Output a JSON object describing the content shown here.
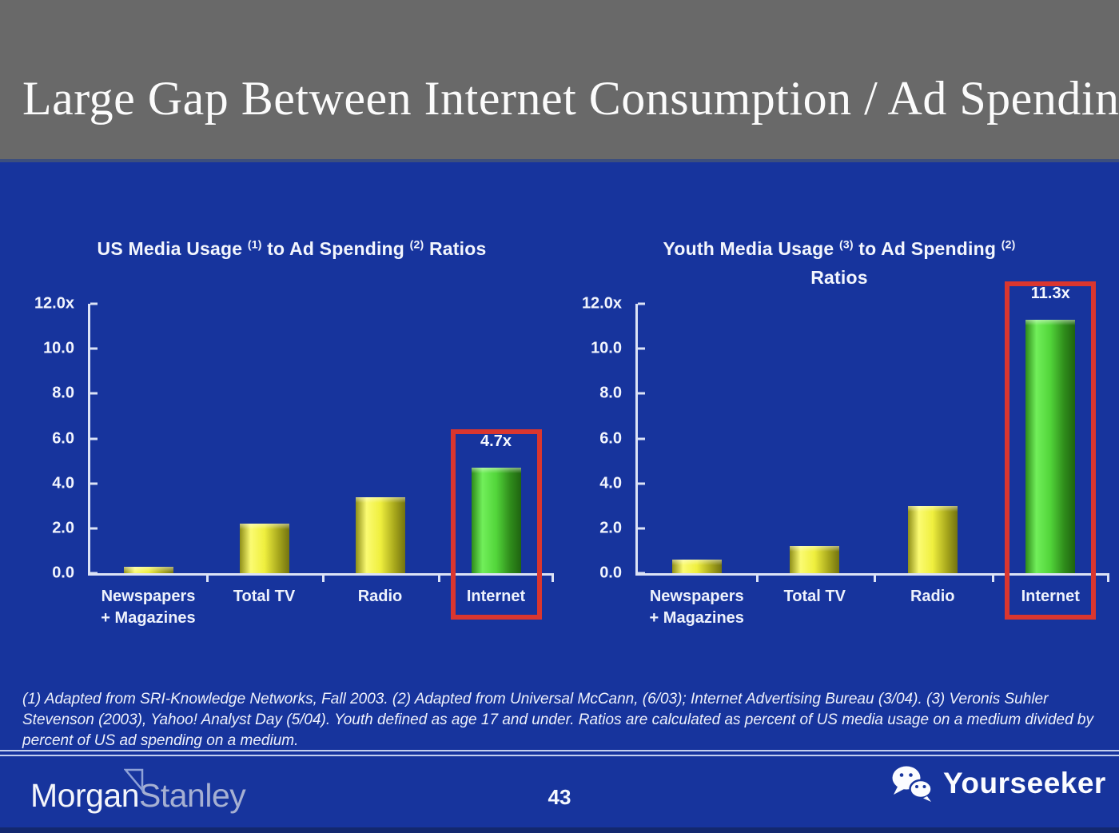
{
  "slide": {
    "title": "Large Gap Between Internet Consumption / Ad Spending",
    "footnote": "(1) Adapted from SRI-Knowledge Networks, Fall 2003.  (2) Adapted from Universal McCann, (6/03); Internet Advertising Bureau (3/04). (3) Veronis Suhler Stevenson (2003), Yahoo! Analyst Day (5/04).  Youth defined as age 17 and under.  Ratios are calculated as percent of US media usage on a medium divided by percent of US ad spending on a medium.",
    "page_number": "43"
  },
  "footer": {
    "brand": {
      "word1": "Morgan",
      "word2": "Stanley"
    },
    "watermark": "Yourseeker"
  },
  "colors": {
    "header_gray": "#696969",
    "background_blue": "#17349d",
    "bar_yellow": "#efef3e",
    "bar_green": "#52d53a",
    "highlight_red": "#da362f",
    "axis_white": "#dce3f6"
  },
  "chart_data": [
    {
      "type": "bar",
      "title": "US Media Usage (1) to Ad Spending (2) Ratios",
      "title_segments": [
        [
          {
            "text": "US Media Usage "
          },
          {
            "text": "(1)",
            "sup": true
          },
          {
            "text": " to Ad Spending "
          },
          {
            "text": "(2)",
            "sup": true
          },
          {
            "text": " Ratios"
          }
        ]
      ],
      "categories": [
        [
          "Newspapers",
          "+ Magazines"
        ],
        [
          "Total TV"
        ],
        [
          "Radio"
        ],
        [
          "Internet"
        ]
      ],
      "values": [
        0.3,
        2.2,
        3.4,
        4.7
      ],
      "bar_colors": [
        "yellow",
        "yellow",
        "yellow",
        "green"
      ],
      "highlight": {
        "index": 3,
        "label": "4.7x"
      },
      "xlabel": "",
      "ylabel": "",
      "ylim": [
        0,
        12
      ],
      "yticks": [
        {
          "value": 12,
          "label": "12.0x"
        },
        {
          "value": 10,
          "label": "10.0"
        },
        {
          "value": 8,
          "label": "8.0"
        },
        {
          "value": 6,
          "label": "6.0"
        },
        {
          "value": 4,
          "label": "4.0"
        },
        {
          "value": 2,
          "label": "2.0"
        },
        {
          "value": 0,
          "label": "0.0"
        }
      ],
      "grid": false,
      "legend": null
    },
    {
      "type": "bar",
      "title": "Youth Media Usage (3) to Ad Spending (2) Ratios",
      "title_segments": [
        [
          {
            "text": "Youth Media Usage "
          },
          {
            "text": "(3)",
            "sup": true
          },
          {
            "text": " to Ad Spending "
          },
          {
            "text": "(2)",
            "sup": true
          }
        ],
        [
          {
            "text": "Ratios"
          }
        ]
      ],
      "categories": [
        [
          "Newspapers",
          "+ Magazines"
        ],
        [
          "Total TV"
        ],
        [
          "Radio"
        ],
        [
          "Internet"
        ]
      ],
      "values": [
        0.6,
        1.2,
        3.0,
        11.3
      ],
      "bar_colors": [
        "yellow",
        "yellow",
        "yellow",
        "green"
      ],
      "highlight": {
        "index": 3,
        "label": "11.3x"
      },
      "xlabel": "",
      "ylabel": "",
      "ylim": [
        0,
        12
      ],
      "yticks": [
        {
          "value": 12,
          "label": "12.0x"
        },
        {
          "value": 10,
          "label": "10.0"
        },
        {
          "value": 8,
          "label": "8.0"
        },
        {
          "value": 6,
          "label": "6.0"
        },
        {
          "value": 4,
          "label": "4.0"
        },
        {
          "value": 2,
          "label": "2.0"
        },
        {
          "value": 0,
          "label": "0.0"
        }
      ],
      "grid": false,
      "legend": null
    }
  ]
}
